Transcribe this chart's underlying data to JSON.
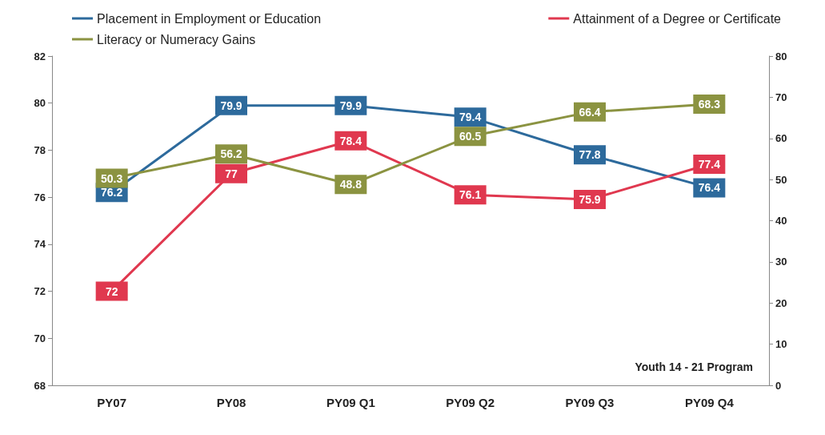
{
  "chart_data": {
    "type": "line",
    "categories": [
      "PY07",
      "PY08",
      "PY09 Q1",
      "PY09 Q2",
      "PY09 Q3",
      "PY09 Q4"
    ],
    "series": [
      {
        "name": "Placement in Employment or Education",
        "color": "#2d6a9c",
        "values": [
          76.2,
          79.9,
          79.9,
          79.4,
          77.8,
          76.4
        ]
      },
      {
        "name": "Attainment of a Degree or Certificate",
        "color": "#e0384f",
        "values": [
          72,
          77,
          78.4,
          76.1,
          75.9,
          77.4
        ]
      },
      {
        "name": "Literacy or Numeracy Gains",
        "color": "#8b9341",
        "axis": "y2",
        "values": [
          50.3,
          56.2,
          48.8,
          60.5,
          66.4,
          68.3
        ]
      }
    ],
    "ylim": [
      68,
      82
    ],
    "yticks": [
      68,
      70,
      72,
      74,
      76,
      78,
      80,
      82
    ],
    "y2lim": [
      0,
      80
    ],
    "y2ticks": [
      0,
      10,
      20,
      30,
      40,
      50,
      60,
      70,
      80
    ],
    "data_labels": true,
    "legend": "top",
    "grid": false,
    "marker": "square",
    "line_style": "solid",
    "annotations": [
      "Youth 14 - 21 Program"
    ]
  }
}
